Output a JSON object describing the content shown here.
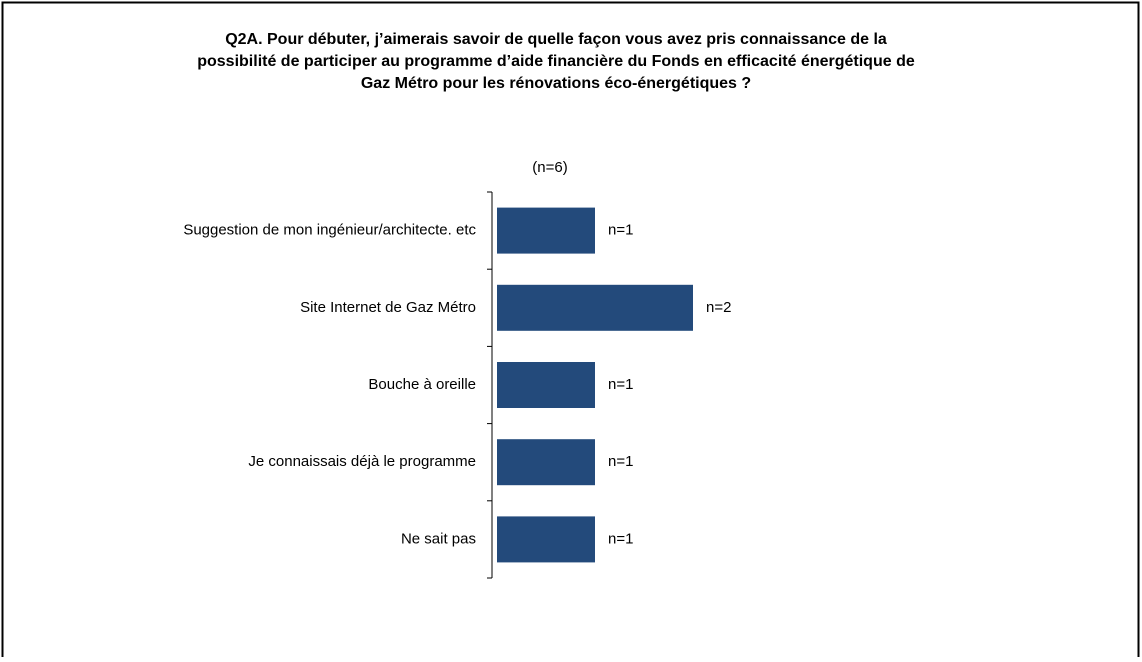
{
  "chart_data": {
    "type": "barh",
    "title": [
      "Q2A. Pour débuter, j’aimerais savoir de quelle façon vous avez pris connaissance de la",
      "possibilité de participer au programme d’aide financière du Fonds en efficacité énergétique de",
      "Gaz Métro pour les rénovations éco-énergétiques ?"
    ],
    "subtitle": "(n=6)",
    "categories": [
      "Suggestion de mon ingénieur/architecte. etc",
      "Site Internet de Gaz Métro",
      "Bouche à oreille",
      "Je connaissais déjà le programme",
      "Ne sait pas"
    ],
    "values": [
      1,
      2,
      1,
      1,
      1
    ],
    "value_labels": [
      "n=1",
      "n=2",
      "n=1",
      "n=1",
      "n=1"
    ],
    "color": "#234a7b"
  }
}
